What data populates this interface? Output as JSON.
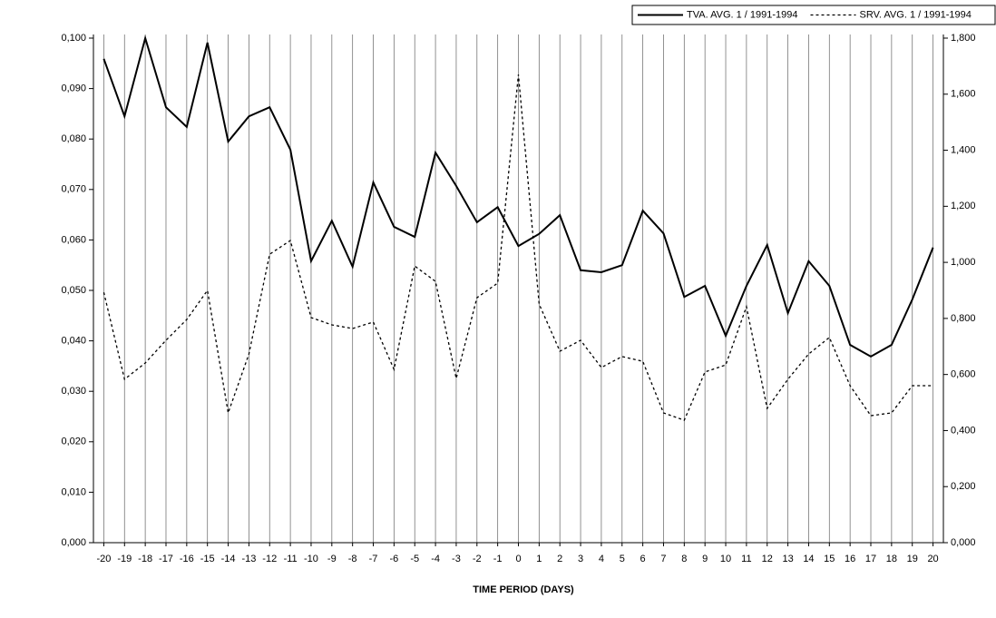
{
  "chart_data": {
    "type": "line",
    "xlabel": "TIME PERIOD (DAYS)",
    "categories": [
      "-20",
      "-19",
      "-18",
      "-17",
      "-16",
      "-15",
      "-14",
      "-13",
      "-12",
      "-11",
      "-10",
      "-9",
      "-8",
      "-7",
      "-6",
      "-5",
      "-4",
      "-3",
      "-2",
      "-1",
      "0",
      "1",
      "2",
      "3",
      "4",
      "5",
      "6",
      "7",
      "8",
      "9",
      "10",
      "11",
      "12",
      "13",
      "14",
      "15",
      "16",
      "17",
      "18",
      "19",
      "20"
    ],
    "series": [
      {
        "name": "TVA. AVG. 1 / 1991-1994",
        "color": "#000000",
        "line_style": "solid",
        "axis": "y",
        "values": [
          0.0959,
          0.0845,
          0.1,
          0.0863,
          0.0824,
          0.0991,
          0.0795,
          0.0845,
          0.0863,
          0.0779,
          0.0558,
          0.0638,
          0.0547,
          0.0714,
          0.0626,
          0.0606,
          0.0773,
          0.0707,
          0.0635,
          0.0665,
          0.0588,
          0.0612,
          0.0649,
          0.054,
          0.0536,
          0.055,
          0.0658,
          0.0613,
          0.0487,
          0.0509,
          0.041,
          0.0509,
          0.059,
          0.0455,
          0.0558,
          0.0509,
          0.0392,
          0.0369,
          0.0392,
          0.0482,
          0.0585
        ]
      },
      {
        "name": "SRV. AVG. 1 / 1991-1994",
        "color": "#000000",
        "line_style": "dotted",
        "axis": "y2",
        "values": [
          0.893,
          0.583,
          0.641,
          0.722,
          0.796,
          0.9,
          0.463,
          0.673,
          1.029,
          1.078,
          0.803,
          0.777,
          0.764,
          0.787,
          0.618,
          0.987,
          0.932,
          0.586,
          0.874,
          0.926,
          1.67,
          0.851,
          0.683,
          0.722,
          0.625,
          0.664,
          0.647,
          0.463,
          0.437,
          0.609,
          0.634,
          0.842,
          0.479,
          0.583,
          0.673,
          0.732,
          0.56,
          0.453,
          0.463,
          0.56,
          0.56
        ]
      }
    ],
    "ylim": [
      0,
      0.1
    ],
    "yticks": [
      {
        "value": 0,
        "label": "0,000"
      },
      {
        "value": 0.01,
        "label": "0,010"
      },
      {
        "value": 0.02,
        "label": "0,020"
      },
      {
        "value": 0.03,
        "label": "0,030"
      },
      {
        "value": 0.04,
        "label": "0,040"
      },
      {
        "value": 0.05,
        "label": "0,050"
      },
      {
        "value": 0.06,
        "label": "0,060"
      },
      {
        "value": 0.07,
        "label": "0,070"
      },
      {
        "value": 0.08,
        "label": "0,080"
      },
      {
        "value": 0.09,
        "label": "0,090"
      },
      {
        "value": 0.1,
        "label": "0,100"
      }
    ],
    "y2lim": [
      0,
      1.8
    ],
    "y2ticks": [
      {
        "value": 0,
        "label": "0,000"
      },
      {
        "value": 0.2,
        "label": "0,200"
      },
      {
        "value": 0.4,
        "label": "0,400"
      },
      {
        "value": 0.6,
        "label": "0,600"
      },
      {
        "value": 0.8,
        "label": "0,800"
      },
      {
        "value": 1.0,
        "label": "1,000"
      },
      {
        "value": 1.2,
        "label": "1,200"
      },
      {
        "value": 1.4,
        "label": "1,400"
      },
      {
        "value": 1.6,
        "label": "1,600"
      },
      {
        "value": 1.8,
        "label": "1,800"
      }
    ],
    "grid": true,
    "legend": "top-right"
  }
}
